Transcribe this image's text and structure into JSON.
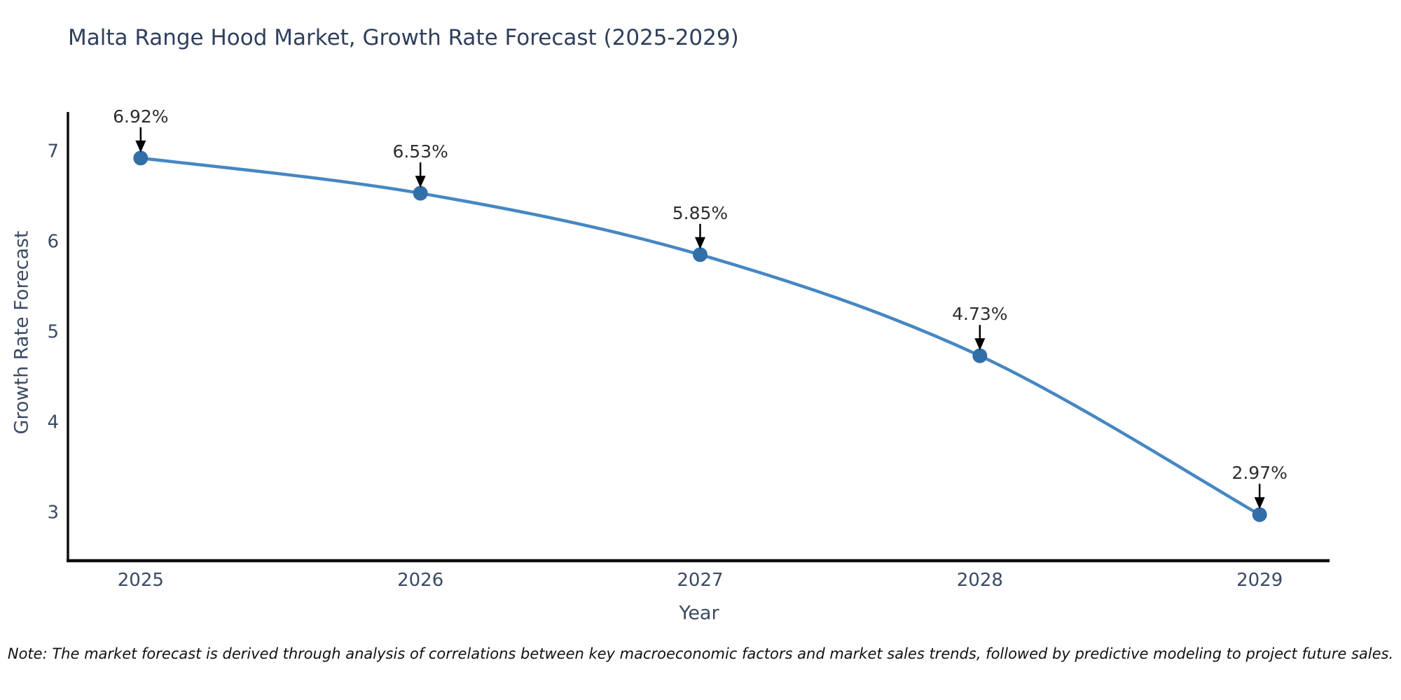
{
  "note": "Note: The market forecast is derived through analysis of correlations between key macroeconomic factors and market sales trends, followed by predictive modeling to project future sales.",
  "chart_data": {
    "type": "line",
    "title": "Malta Range Hood Market, Growth Rate Forecast (2025-2029)",
    "xlabel": "Year",
    "ylabel": "Growth Rate Forecast",
    "x": [
      2025,
      2026,
      2027,
      2028,
      2029
    ],
    "values": [
      6.92,
      6.53,
      5.85,
      4.73,
      2.97
    ],
    "point_labels": [
      "6.92%",
      "6.53%",
      "5.85%",
      "4.73%",
      "2.97%"
    ],
    "xticks": [
      2025,
      2026,
      2027,
      2028,
      2029
    ],
    "yticks": [
      3,
      4,
      5,
      6,
      7
    ],
    "xlim": [
      2024.74,
      2029.23
    ],
    "ylim": [
      2.46,
      7.43
    ],
    "grid": false,
    "legend": "none",
    "smooth": true,
    "colors": {
      "line": "#4687c2",
      "marker": "#326fa8",
      "arrow": "#000000",
      "spine": "#0d0d0d",
      "tick_text": "#3b4a63",
      "annotation_text": "#2d2d2d",
      "title_text": "#2f3f5c"
    }
  }
}
